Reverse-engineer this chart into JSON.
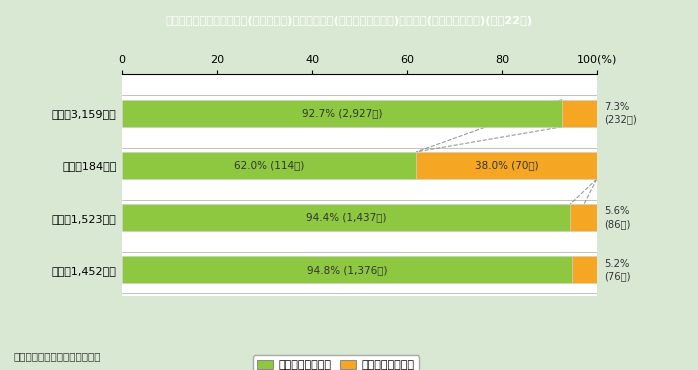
{
  "title": "第１－６－３図　配偶者間(内縁を含む)における犯罪(殺人，傷害，暴行)の被害者(検挙件数の割合)(平成22年)",
  "categories": [
    "総数（3,159件）",
    "殺人（184件）",
    "傷害（1,523件）",
    "暴行（1,452件）"
  ],
  "female_values": [
    92.7,
    62.0,
    94.4,
    94.8
  ],
  "male_values": [
    7.3,
    38.0,
    5.6,
    5.2
  ],
  "female_labels": [
    "92.7% (2,927件)",
    "62.0% (114件)",
    "94.4% (1,437件)",
    "94.8% (1,376件)"
  ],
  "male_labels_outside": [
    "7.3%\n(232件)",
    "5.6%\n(86件)",
    "5.2%\n(76件)"
  ],
  "male_label_inside": "38.0% (70件)",
  "female_color": "#8DC840",
  "male_color": "#F5A623",
  "title_bg_color": "#7A6830",
  "title_text_color": "#FFFFFF",
  "bg_color": "#D9E8D2",
  "plot_bg_color": "#FFFFFF",
  "xticks": [
    0,
    20,
    40,
    60,
    80,
    100
  ],
  "legend_female": "女性配偶者の割合",
  "legend_male": "男性配偶者の割合",
  "footnote": "（備考）警察庁資料より作成。"
}
